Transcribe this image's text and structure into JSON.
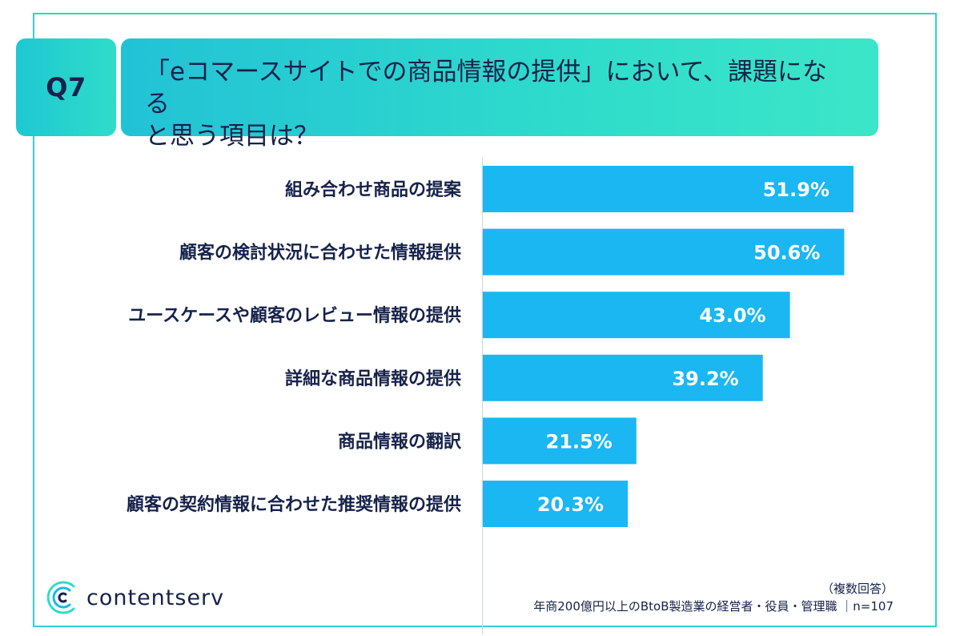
{
  "header": {
    "q_label": "Q7",
    "title_line1": "「eコマースサイトでの商品情報の提供」において、課題になる",
    "title_line2": "と思う項目は？"
  },
  "chart_data": {
    "type": "bar",
    "orientation": "horizontal",
    "title": "「eコマースサイトでの商品情報の提供」において、課題になると思う項目は？",
    "categories": [
      "組み合わせ商品の提案",
      "顧客の検討状況に合わせた情報提供",
      "ユースケースや顧客のレビュー情報の提供",
      "詳細な商品情報の提供",
      "商品情報の翻訳",
      "顧客の契約情報に合わせた推奨情報の提供"
    ],
    "values": [
      51.9,
      50.6,
      43.0,
      39.2,
      21.5,
      20.3
    ],
    "value_labels": [
      "51.9%",
      "50.6%",
      "43.0%",
      "39.2%",
      "21.5%",
      "20.3%"
    ],
    "unit": "%",
    "xlim": [
      0,
      60
    ],
    "xlabel": "",
    "ylabel": "",
    "grid": false,
    "bar_color": "#1ab7f3"
  },
  "footer": {
    "note_line1": "（複数回答）",
    "note_line2": "年商200億円以上のBtoB製造業の経営者・役員・管理職 ｜n=107",
    "logo_text": "contentserv"
  },
  "colors": {
    "accent": "#2fdcca",
    "text_navy": "#16224a",
    "bar": "#1ab7f3"
  }
}
